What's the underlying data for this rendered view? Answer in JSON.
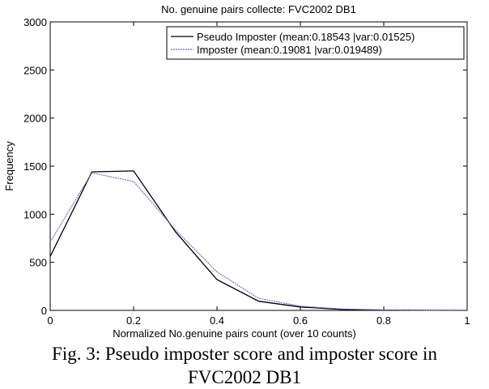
{
  "chart_data": {
    "type": "line",
    "title": "No. genuine pairs collecte: FVC2002 DB1",
    "xlabel": "Normalized No.genuine pairs count (over 10 counts)",
    "ylabel": "Frequency",
    "xlim": [
      0,
      1
    ],
    "ylim": [
      0,
      3000
    ],
    "xticks": [
      0,
      0.2,
      0.4,
      0.6,
      0.8,
      1
    ],
    "xtick_labels": [
      "0",
      "0.2",
      "0.4",
      "0.6",
      "0.8",
      "1"
    ],
    "yticks": [
      0,
      500,
      1000,
      1500,
      2000,
      2500,
      3000
    ],
    "ytick_labels": [
      "0",
      "500",
      "1000",
      "1500",
      "2000",
      "2500",
      "3000"
    ],
    "grid": false,
    "legend_position": "top-right",
    "x": [
      0,
      0.1,
      0.2,
      0.3,
      0.4,
      0.5,
      0.6,
      0.7,
      0.8,
      0.9,
      1.0
    ],
    "series": [
      {
        "name": "Pseudo Imposter (mean:0.18543 |var:0.01525)",
        "color": "#000000",
        "values": [
          560,
          1440,
          1450,
          820,
          320,
          95,
          35,
          10,
          3,
          1,
          0
        ]
      },
      {
        "name": "Imposter (mean:0.19081 |var:0.019489)",
        "color": "#6a6ab8",
        "values": [
          710,
          1430,
          1340,
          840,
          400,
          125,
          45,
          14,
          4,
          1,
          0
        ]
      }
    ]
  },
  "caption": {
    "line1": "Fig. 3: Pseudo imposter score and imposter score in",
    "line2": "FVC2002 DB1"
  }
}
